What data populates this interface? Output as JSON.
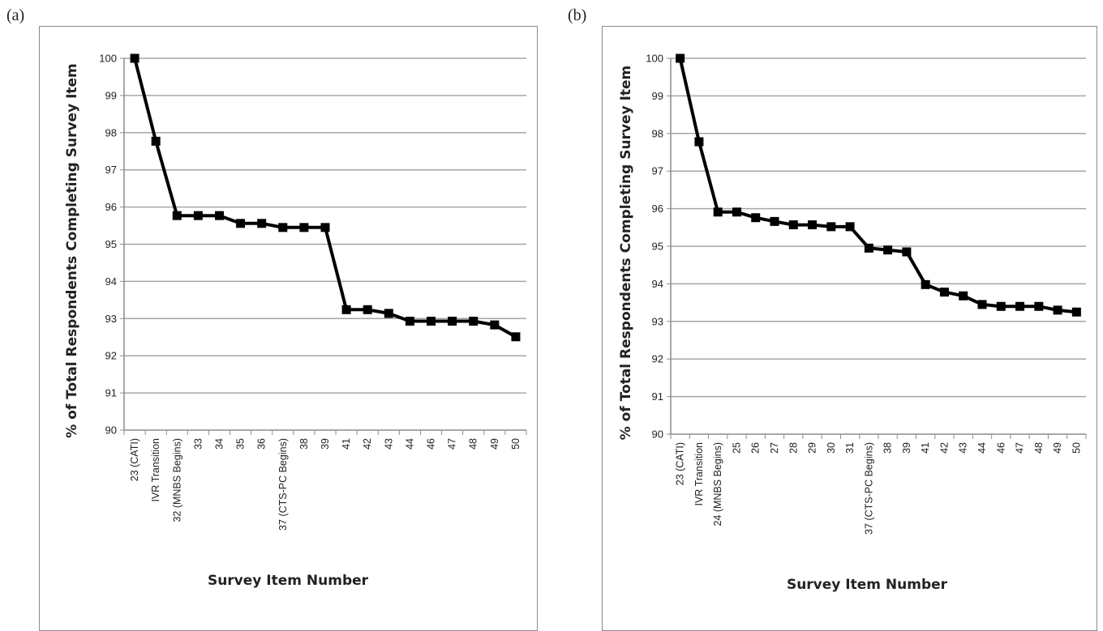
{
  "panels": {
    "a": {
      "label": "(a)"
    },
    "b": {
      "label": "(b)"
    }
  },
  "chart_data": [
    {
      "type": "line",
      "panel": "(a)",
      "xlabel": "Survey Item Number",
      "ylabel": "% of Total Respondents Completing Survey Item",
      "ylim": [
        90,
        100
      ],
      "yticks": [
        90,
        91,
        92,
        93,
        94,
        95,
        96,
        97,
        98,
        99,
        100
      ],
      "grid": true,
      "marker": "square",
      "categories": [
        "23 (CATI)",
        "IVR Transition",
        "32 (MNBS Begins)",
        "33",
        "34",
        "35",
        "36",
        "37 (CTS-PC Begins)",
        "38",
        "39",
        "41",
        "42",
        "43",
        "44",
        "46",
        "47",
        "48",
        "49",
        "50"
      ],
      "values": [
        100,
        97.77,
        95.77,
        95.77,
        95.77,
        95.56,
        95.56,
        95.45,
        95.45,
        95.45,
        93.24,
        93.24,
        93.14,
        92.93,
        92.93,
        92.93,
        92.93,
        92.83,
        92.51
      ]
    },
    {
      "type": "line",
      "panel": "(b)",
      "xlabel": "Survey Item Number",
      "ylabel": "% of Total Respondents Completing Survey Item",
      "ylim": [
        90,
        100
      ],
      "yticks": [
        90,
        91,
        92,
        93,
        94,
        95,
        96,
        97,
        98,
        99,
        100
      ],
      "grid": true,
      "marker": "square",
      "categories": [
        "23 (CATI)",
        "IVR Transition",
        "24 (MNBS Begins)",
        "25",
        "26",
        "27",
        "28",
        "29",
        "30",
        "31",
        "37 (CTS-PC Begins)",
        "38",
        "39",
        "41",
        "42",
        "43",
        "44",
        "46",
        "47",
        "48",
        "49",
        "50"
      ],
      "values": [
        100,
        97.78,
        95.91,
        95.91,
        95.76,
        95.66,
        95.57,
        95.57,
        95.52,
        95.52,
        94.95,
        94.9,
        94.85,
        93.98,
        93.78,
        93.68,
        93.45,
        93.4,
        93.4,
        93.4,
        93.3,
        93.25
      ]
    }
  ]
}
